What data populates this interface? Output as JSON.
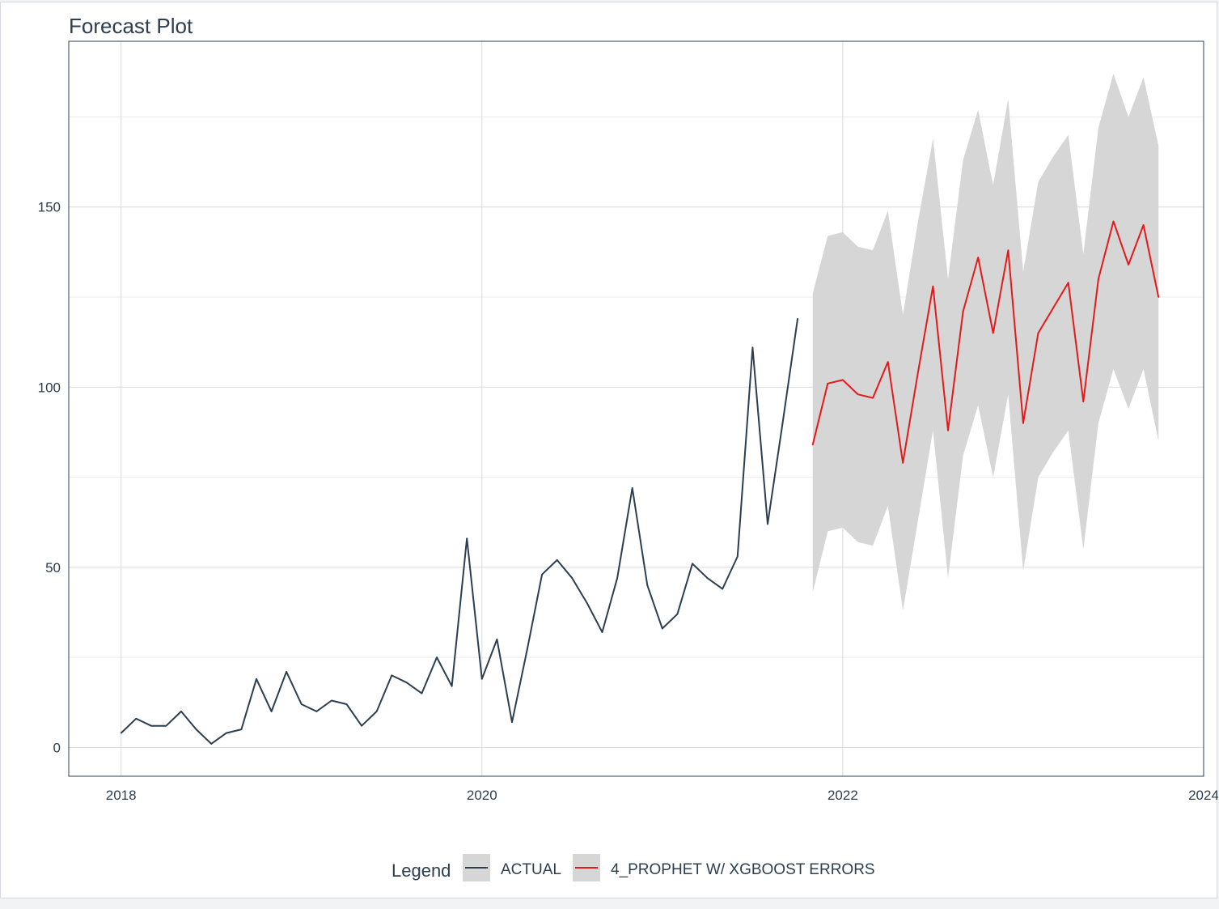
{
  "chart_data": {
    "type": "line",
    "title": "Forecast Plot",
    "xlabel": "",
    "ylabel": "",
    "x_ticks": [
      "2018",
      "2020",
      "2022",
      "2024"
    ],
    "y_ticks": [
      "0",
      "50",
      "100",
      "150"
    ],
    "xlim": [
      2017.71,
      2024.0
    ],
    "ylim": [
      -8,
      196
    ],
    "grid": true,
    "legend_title": "Legend",
    "legend_position": "bottom",
    "series": [
      {
        "name": "ACTUAL",
        "color": "#2c3e50",
        "x": [
          "2018-01",
          "2018-02",
          "2018-03",
          "2018-04",
          "2018-05",
          "2018-06",
          "2018-07",
          "2018-08",
          "2018-09",
          "2018-10",
          "2018-11",
          "2018-12",
          "2019-01",
          "2019-02",
          "2019-03",
          "2019-04",
          "2019-05",
          "2019-06",
          "2019-07",
          "2019-08",
          "2019-09",
          "2019-10",
          "2019-11",
          "2019-12",
          "2020-01",
          "2020-02",
          "2020-03",
          "2020-04",
          "2020-05",
          "2020-06",
          "2020-07",
          "2020-08",
          "2020-09",
          "2020-10",
          "2020-11",
          "2020-12",
          "2021-01",
          "2021-02",
          "2021-03",
          "2021-04",
          "2021-05",
          "2021-06",
          "2021-07",
          "2021-08",
          "2021-09",
          "2021-10"
        ],
        "y": [
          4,
          8,
          6,
          6,
          10,
          5,
          1,
          4,
          5,
          19,
          10,
          21,
          12,
          10,
          13,
          12,
          6,
          10,
          20,
          18,
          15,
          25,
          17,
          58,
          19,
          30,
          7,
          27,
          48,
          52,
          47,
          40,
          32,
          47,
          72,
          45,
          33,
          37,
          51,
          47,
          44,
          53,
          111,
          62,
          90,
          119
        ]
      },
      {
        "name": "4_PROPHET W/ XGBOOST ERRORS",
        "color": "#e31a1c",
        "x": [
          "2021-11",
          "2021-12",
          "2022-01",
          "2022-02",
          "2022-03",
          "2022-04",
          "2022-05",
          "2022-06",
          "2022-07",
          "2022-08",
          "2022-09",
          "2022-10",
          "2022-11",
          "2022-12",
          "2023-01",
          "2023-02",
          "2023-03",
          "2023-04",
          "2023-05",
          "2023-06",
          "2023-07",
          "2023-08",
          "2023-09",
          "2023-10"
        ],
        "y": [
          84,
          101,
          102,
          98,
          97,
          107,
          79,
          104,
          128,
          88,
          121,
          136,
          115,
          138,
          90,
          115,
          122,
          129,
          96,
          130,
          146,
          134,
          145,
          125
        ],
        "lower": [
          43,
          60,
          61,
          57,
          56,
          67,
          38,
          63,
          88,
          47,
          81,
          95,
          75,
          98,
          49,
          75,
          82,
          88,
          55,
          90,
          105,
          94,
          105,
          85
        ],
        "upper": [
          126,
          142,
          143,
          139,
          138,
          149,
          120,
          146,
          169,
          130,
          163,
          177,
          156,
          180,
          132,
          157,
          164,
          170,
          137,
          172,
          187,
          175,
          186,
          167
        ]
      }
    ]
  }
}
